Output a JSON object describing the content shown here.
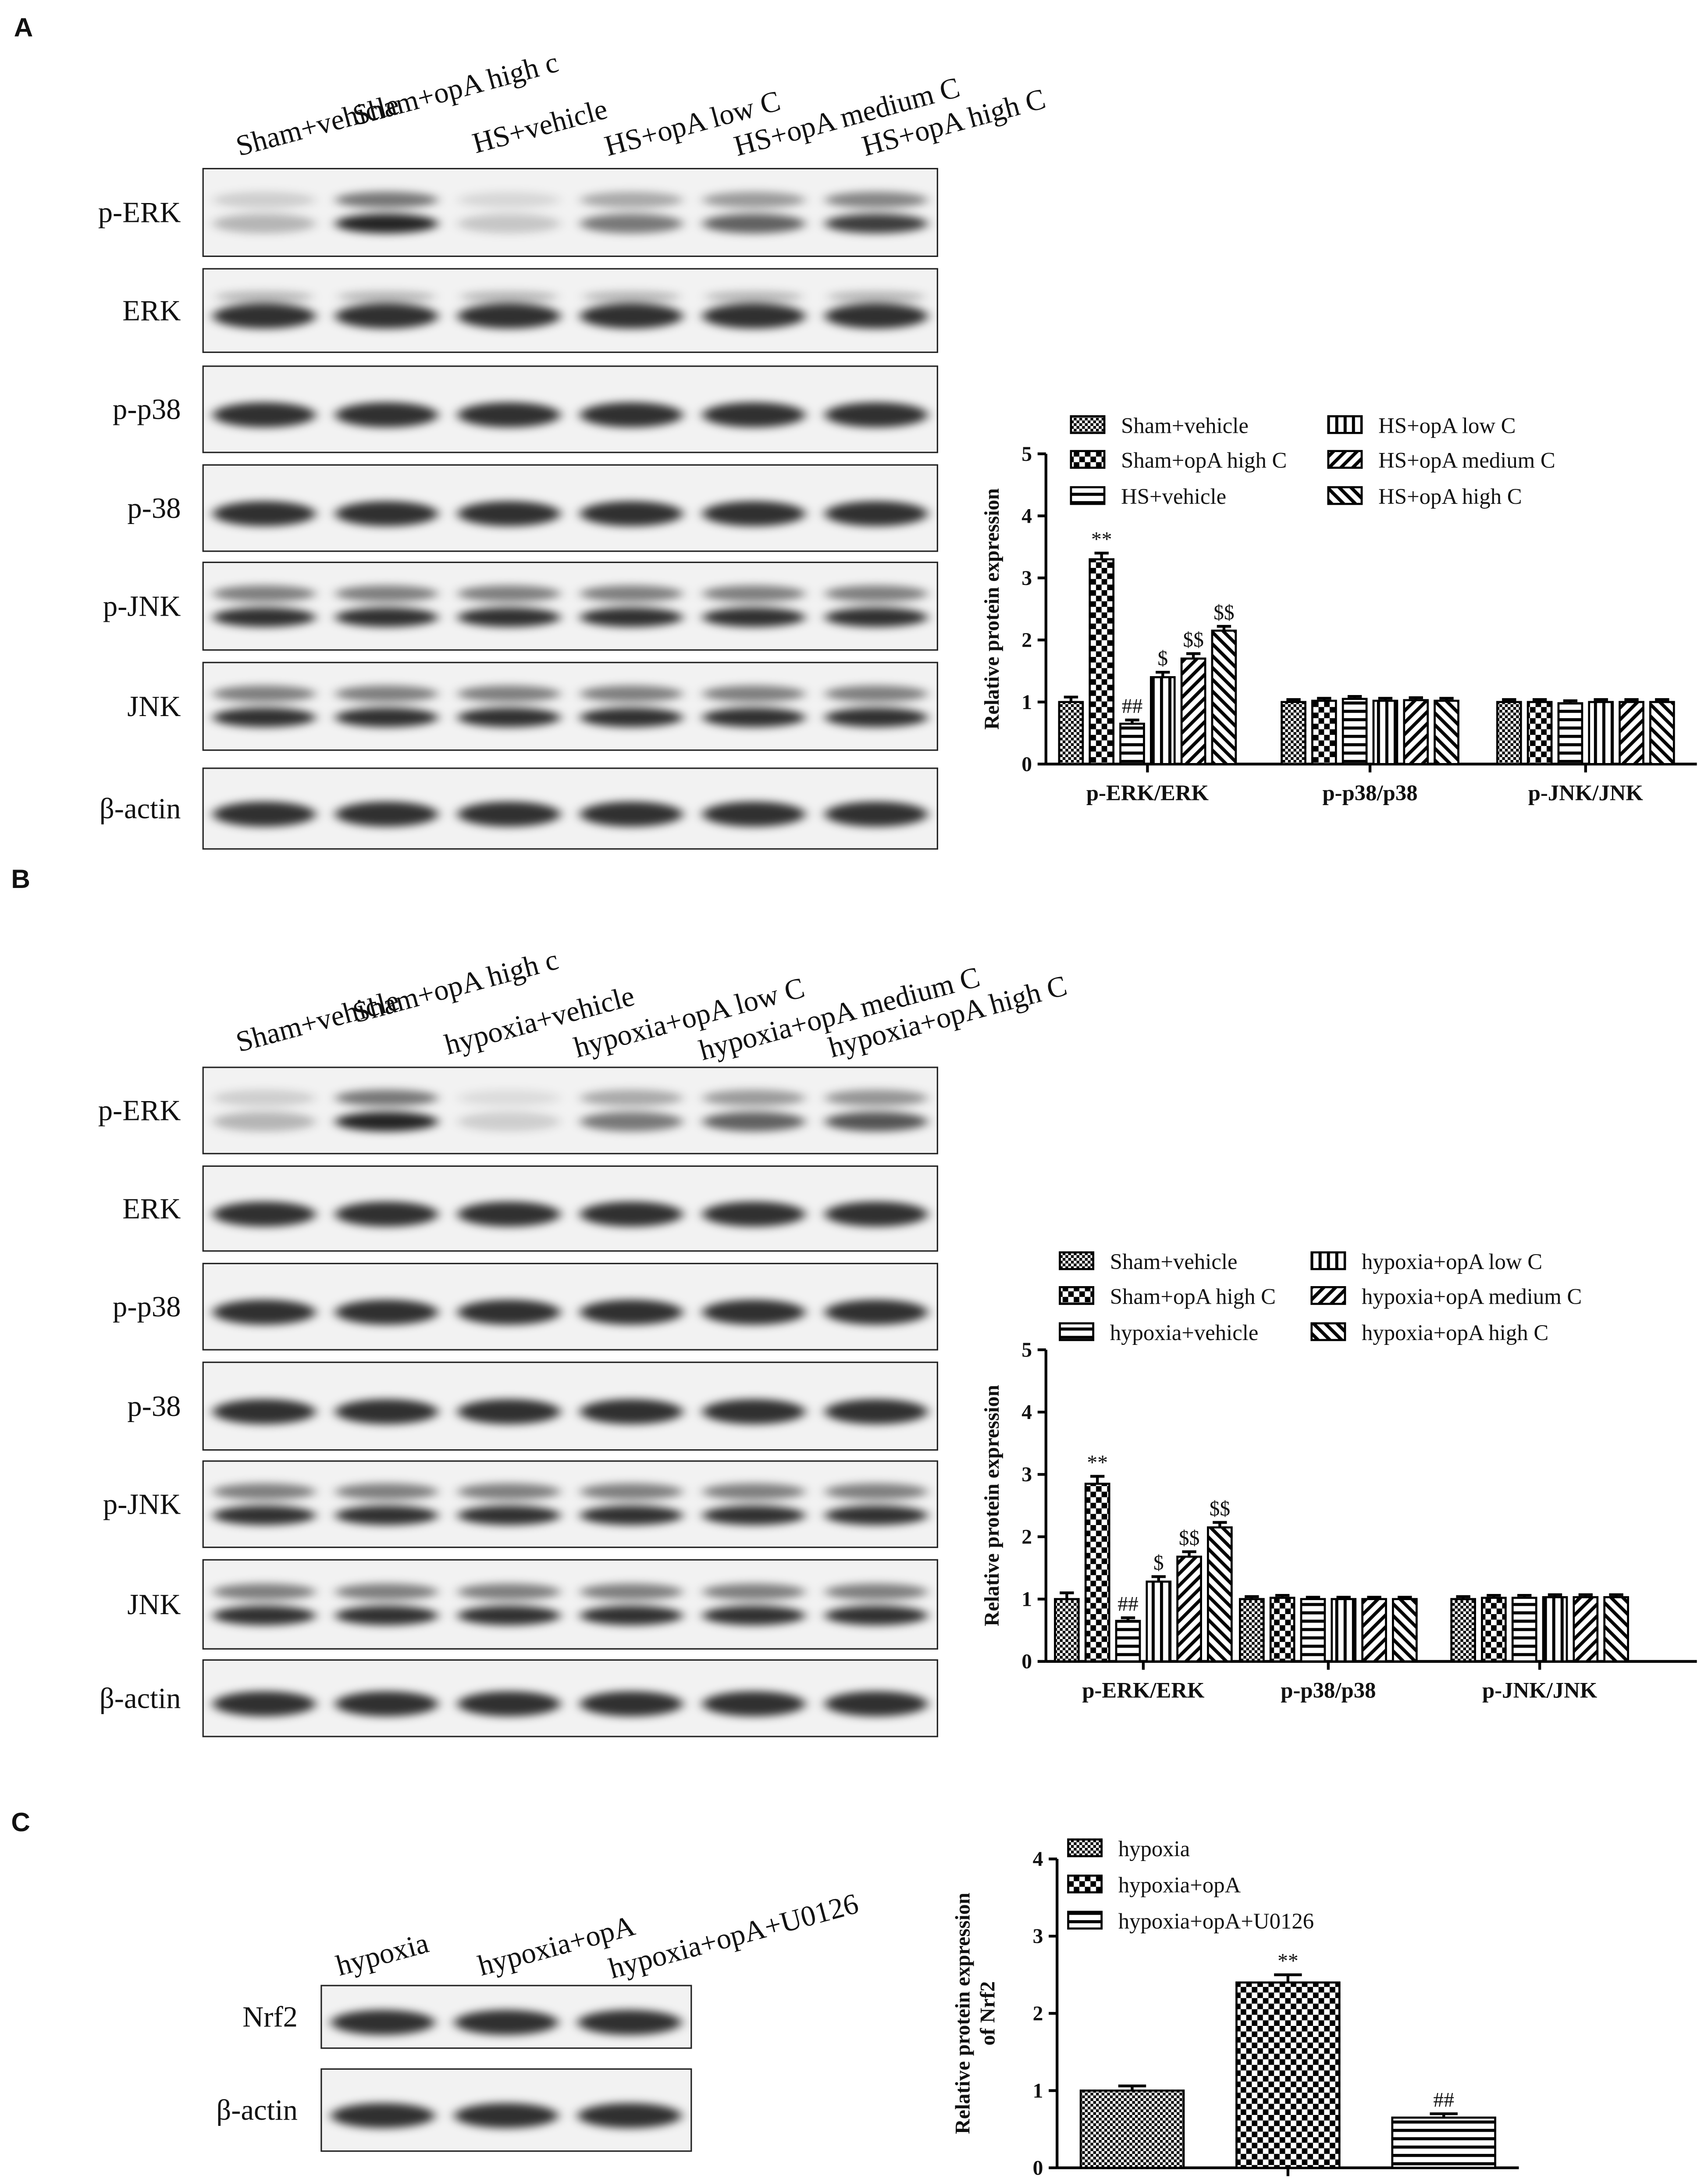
{
  "panel_labels": [
    "A",
    "B",
    "C"
  ],
  "blots": [
    {
      "lanes": [
        "Sham+vehicle",
        "Sham+opA high c",
        "HS+vehicle",
        "HS+opA low C",
        "HS+opA medium C",
        "HS+opA high C"
      ],
      "rows": [
        "p-ERK",
        "ERK",
        "p-p38",
        "p-38",
        "p-JNK",
        "JNK",
        "β-actin"
      ]
    },
    {
      "lanes": [
        "Sham+vehicle",
        "Sham+opA high c",
        "hypoxia+vehicle",
        "hypoxia+opA low C",
        "hypoxia+opA medium C",
        "hypoxia+opA high C"
      ],
      "rows": [
        "p-ERK",
        "ERK",
        "p-p38",
        "p-38",
        "p-JNK",
        "JNK",
        "β-actin"
      ]
    },
    {
      "lanes": [
        "hypoxia",
        "hypoxia+opA",
        "hypoxia+opA+U0126"
      ],
      "rows": [
        "Nrf2",
        "β-actin"
      ]
    }
  ],
  "chart_data": [
    {
      "type": "bar",
      "ylabel": [
        "Relative protein expression"
      ],
      "categories": [
        "p-ERK/ERK",
        "p-p38/p38",
        "p-JNK/JNK"
      ],
      "ylim": [
        0,
        5
      ],
      "yticks": [
        0,
        1,
        2,
        3,
        4,
        5
      ],
      "series": [
        {
          "name": "Sham+vehicle",
          "pattern": "checker-small",
          "values": [
            1.0,
            1.0,
            1.0
          ],
          "errors": [
            0.08,
            0.04,
            0.04
          ],
          "annotations": [
            null,
            null,
            null
          ]
        },
        {
          "name": "Sham+opA high C",
          "pattern": "checker-large",
          "values": [
            3.3,
            1.02,
            1.0
          ],
          "errors": [
            0.1,
            0.04,
            0.04
          ],
          "annotations": [
            "**",
            null,
            null
          ]
        },
        {
          "name": "HS+vehicle",
          "pattern": "hlines",
          "values": [
            0.65,
            1.05,
            0.98
          ],
          "errors": [
            0.06,
            0.04,
            0.04
          ],
          "annotations": [
            "##",
            null,
            null
          ]
        },
        {
          "name": "HS+opA low C",
          "pattern": "vlines",
          "values": [
            1.4,
            1.02,
            1.0
          ],
          "errors": [
            0.08,
            0.04,
            0.04
          ],
          "annotations": [
            "$",
            null,
            null
          ]
        },
        {
          "name": "HS+opA medium C",
          "pattern": "diag-right",
          "values": [
            1.7,
            1.03,
            1.0
          ],
          "errors": [
            0.08,
            0.04,
            0.04
          ],
          "annotations": [
            "$$",
            null,
            null
          ]
        },
        {
          "name": "HS+opA high C",
          "pattern": "diag-left",
          "values": [
            2.15,
            1.02,
            1.0
          ],
          "errors": [
            0.07,
            0.04,
            0.04
          ],
          "annotations": [
            "$$",
            null,
            null
          ]
        }
      ]
    },
    {
      "type": "bar",
      "ylabel": [
        "Relative protein expression"
      ],
      "categories": [
        "p-ERK/ERK",
        "p-p38/p38",
        "p-JNK/JNK"
      ],
      "ylim": [
        0,
        5
      ],
      "yticks": [
        0,
        1,
        2,
        3,
        4,
        5
      ],
      "series": [
        {
          "name": "Sham+vehicle",
          "pattern": "checker-small",
          "values": [
            1.0,
            1.0,
            1.0
          ],
          "errors": [
            0.1,
            0.04,
            0.04
          ],
          "annotations": [
            null,
            null,
            null
          ]
        },
        {
          "name": "Sham+opA high C",
          "pattern": "checker-large",
          "values": [
            2.85,
            1.02,
            1.02
          ],
          "errors": [
            0.12,
            0.04,
            0.04
          ],
          "annotations": [
            "**",
            null,
            null
          ]
        },
        {
          "name": "hypoxia+vehicle",
          "pattern": "hlines",
          "values": [
            0.65,
            1.0,
            1.02
          ],
          "errors": [
            0.05,
            0.03,
            0.04
          ],
          "annotations": [
            "##",
            null,
            null
          ]
        },
        {
          "name": "hypoxia+opA low C",
          "pattern": "vlines",
          "values": [
            1.28,
            1.0,
            1.03
          ],
          "errors": [
            0.08,
            0.03,
            0.04
          ],
          "annotations": [
            "$",
            null,
            null
          ]
        },
        {
          "name": "hypoxia+opA medium C",
          "pattern": "diag-right",
          "values": [
            1.68,
            1.0,
            1.03
          ],
          "errors": [
            0.08,
            0.03,
            0.04
          ],
          "annotations": [
            "$$",
            null,
            null
          ]
        },
        {
          "name": "hypoxia+opA high C",
          "pattern": "diag-left",
          "values": [
            2.15,
            1.0,
            1.03
          ],
          "errors": [
            0.08,
            0.03,
            0.04
          ],
          "annotations": [
            "$$",
            null,
            null
          ]
        }
      ]
    },
    {
      "type": "bar",
      "ylabel": [
        "Relative protein expression",
        "of Nrf2"
      ],
      "categories": [
        null
      ],
      "ylim": [
        0,
        4
      ],
      "yticks": [
        0,
        1,
        2,
        3,
        4
      ],
      "series": [
        {
          "name": "hypoxia",
          "pattern": "checker-small",
          "values": [
            1.0
          ],
          "errors": [
            0.06
          ],
          "annotations": [
            null
          ]
        },
        {
          "name": "hypoxia+opA",
          "pattern": "checker-large",
          "values": [
            2.4
          ],
          "errors": [
            0.1
          ],
          "annotations": [
            "**"
          ]
        },
        {
          "name": "hypoxia+opA+U0126",
          "pattern": "hlines",
          "values": [
            0.65
          ],
          "errors": [
            0.05
          ],
          "annotations": [
            "##"
          ]
        }
      ]
    }
  ]
}
